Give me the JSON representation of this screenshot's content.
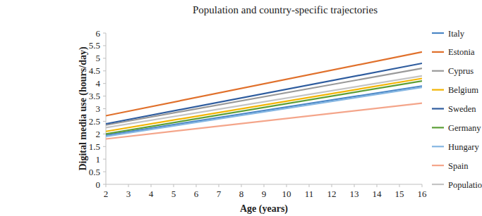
{
  "chart_data": {
    "type": "line",
    "title": "Population and country-specific trajectories",
    "x_label": "Age (years)",
    "y_label": "Digital media use (hours/day)",
    "x": [
      2,
      16
    ],
    "xlim": [
      2,
      16
    ],
    "xticks": [
      2,
      3,
      4,
      5,
      6,
      7,
      8,
      9,
      10,
      11,
      12,
      13,
      14,
      15,
      16
    ],
    "ylim": [
      0,
      6
    ],
    "yticks": [
      0,
      0.5,
      1,
      1.5,
      2,
      2.5,
      3,
      3.5,
      4,
      4.5,
      5,
      5.5,
      6
    ],
    "grid": false,
    "legend": "right",
    "series": [
      {
        "name": "Italy",
        "color": "#4a86c5",
        "values": [
          1.95,
          3.9
        ]
      },
      {
        "name": "Estonia",
        "color": "#e0702b",
        "values": [
          2.72,
          5.25
        ]
      },
      {
        "name": "Cyprus",
        "color": "#999999",
        "values": [
          2.35,
          4.6
        ]
      },
      {
        "name": "Belgium",
        "color": "#f2b400",
        "values": [
          2.1,
          4.2
        ]
      },
      {
        "name": "Sweden",
        "color": "#2e5c9e",
        "values": [
          2.4,
          4.8
        ]
      },
      {
        "name": "Germany",
        "color": "#5c9e36",
        "values": [
          2.0,
          4.1
        ]
      },
      {
        "name": "Hungary",
        "color": "#85b6e2",
        "values": [
          1.9,
          3.85
        ]
      },
      {
        "name": "Spain",
        "color": "#f4a58a",
        "values": [
          1.8,
          3.22
        ]
      },
      {
        "name": "Population mean",
        "color": "#c4c4c4",
        "values": [
          2.25,
          4.3
        ]
      }
    ]
  }
}
